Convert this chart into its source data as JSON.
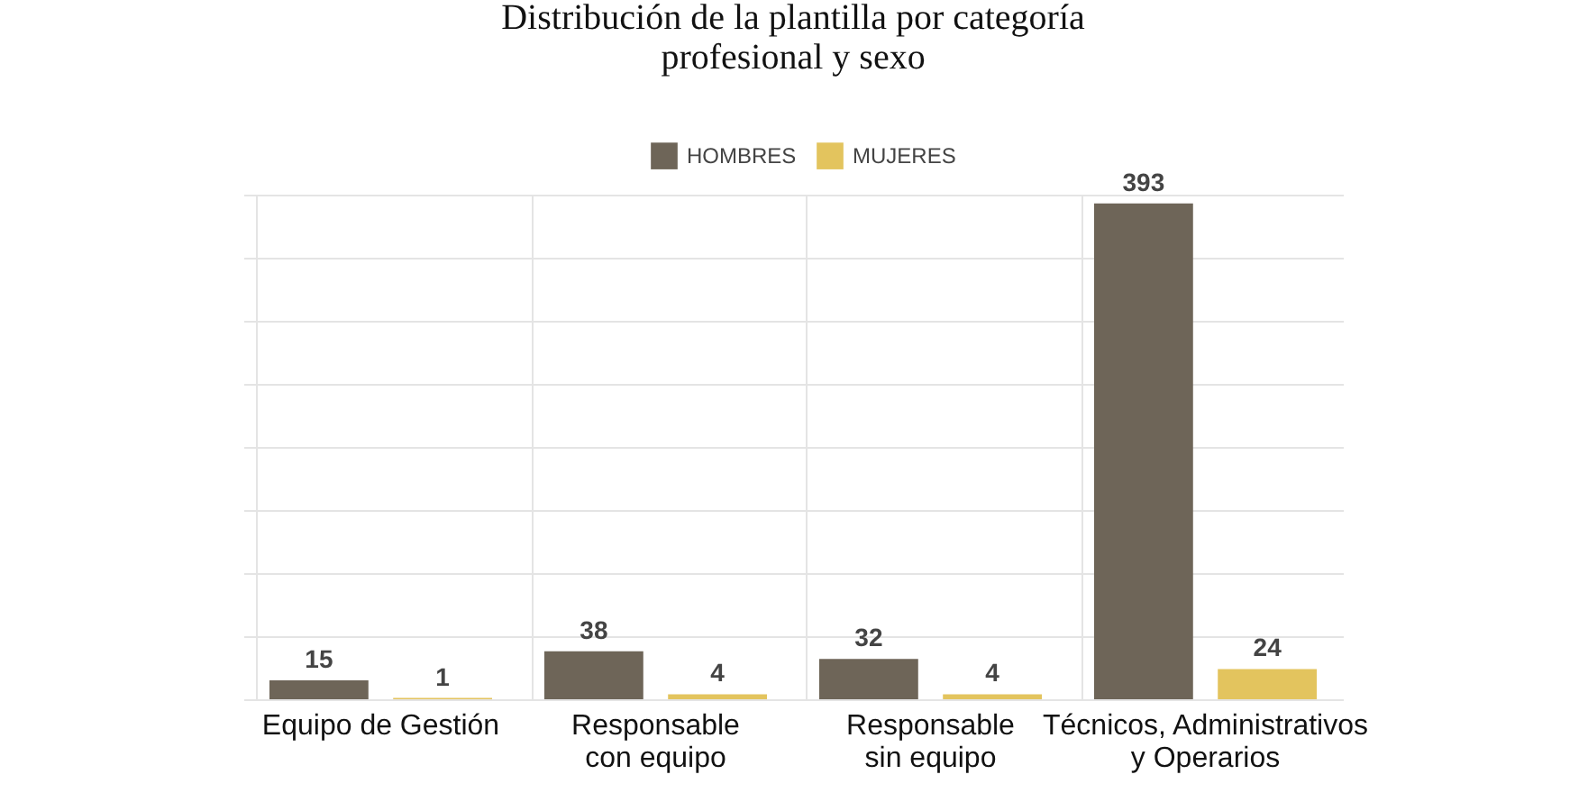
{
  "chart_data": {
    "type": "bar",
    "title": "Distribución de la plantilla por categoría profesional y sexo",
    "categories": [
      "Equipo de Gestión",
      "Responsable con equipo",
      "Responsable sin equipo",
      "Técnicos, Administrativos y Operarios"
    ],
    "series": [
      {
        "name": "HOMBRES",
        "color": "#6e6558",
        "values": [
          15,
          38,
          32,
          393
        ]
      },
      {
        "name": "MUJERES",
        "color": "#e3c45e",
        "values": [
          1,
          4,
          4,
          24
        ]
      }
    ],
    "data_labels": true,
    "grid": true,
    "legend": "top"
  }
}
